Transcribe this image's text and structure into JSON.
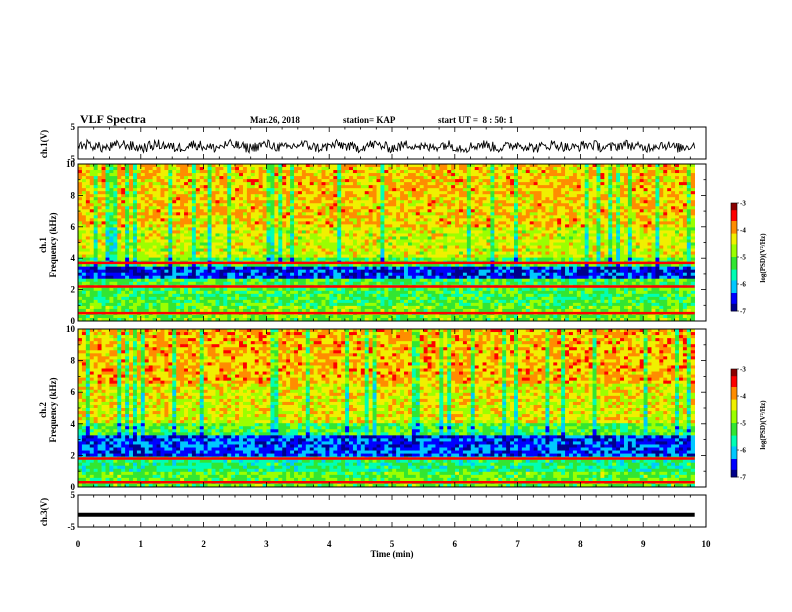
{
  "header": {
    "title": "VLF Spectra",
    "date": "Mar.26, 2018",
    "station": "station= KAP",
    "start": "start UT =  8 : 50: 1"
  },
  "colors": {
    "spectrogram_levels": [
      "#00008b",
      "#0000ff",
      "#00c8ff",
      "#00ffb4",
      "#32e632",
      "#9bff00",
      "#f0f000",
      "#ff8c00",
      "#ff0000",
      "#8b0000"
    ],
    "waveform": "#000000"
  },
  "chart_data": [
    {
      "type": "line",
      "name": "ch1-waveform",
      "ylabel": "ch.1(V)",
      "ylim": [
        -5,
        5
      ],
      "yticks": [
        "5",
        "-5"
      ],
      "xlim": [
        0,
        10
      ],
      "description_values": "noise waveform around -1 V with amplitude ~2 V"
    },
    {
      "type": "heatmap",
      "name": "ch1-spectrogram",
      "ylabel": "ch.1\nFrequency (kHz)",
      "ylabel_line1": "ch.1",
      "ylabel_line2": "Frequency (kHz)",
      "ylim": [
        0,
        10
      ],
      "yticks": [
        "0",
        "2",
        "4",
        "6",
        "8",
        "10"
      ],
      "xlim": [
        0,
        9.82
      ],
      "colorbar": {
        "range": [
          -7,
          -3
        ],
        "ticks": [
          "-3",
          "-4",
          "-5",
          "-6",
          "-7"
        ],
        "label": "log(PSD)(V²/Hz)"
      },
      "lines_khz": [
        3.7,
        2.2,
        0.5
      ]
    },
    {
      "type": "heatmap",
      "name": "ch2-spectrogram",
      "ylabel_line1": "ch.2",
      "ylabel_line2": "Frequency (kHz)",
      "ylim": [
        0,
        10
      ],
      "yticks": [
        "0",
        "2",
        "4",
        "6",
        "8",
        "10"
      ],
      "xlim": [
        0,
        9.82
      ],
      "colorbar": {
        "range": [
          -7,
          -3
        ],
        "ticks": [
          "-3",
          "-4",
          "-5",
          "-6",
          "-7"
        ],
        "label": "log(PSD)(V²/Hz)"
      },
      "lines_khz": [
        1.8,
        0.3
      ]
    },
    {
      "type": "line",
      "name": "ch3-waveform",
      "ylabel": "ch.3(V)",
      "ylim": [
        -5,
        5
      ],
      "yticks": [
        "5",
        "-5"
      ],
      "xlim": [
        0,
        10
      ],
      "values": [
        -1.2
      ]
    }
  ],
  "xaxis": {
    "label": "Time (min)",
    "ticks": [
      "0",
      "1",
      "2",
      "3",
      "4",
      "5",
      "6",
      "7",
      "8",
      "9",
      "10"
    ]
  }
}
